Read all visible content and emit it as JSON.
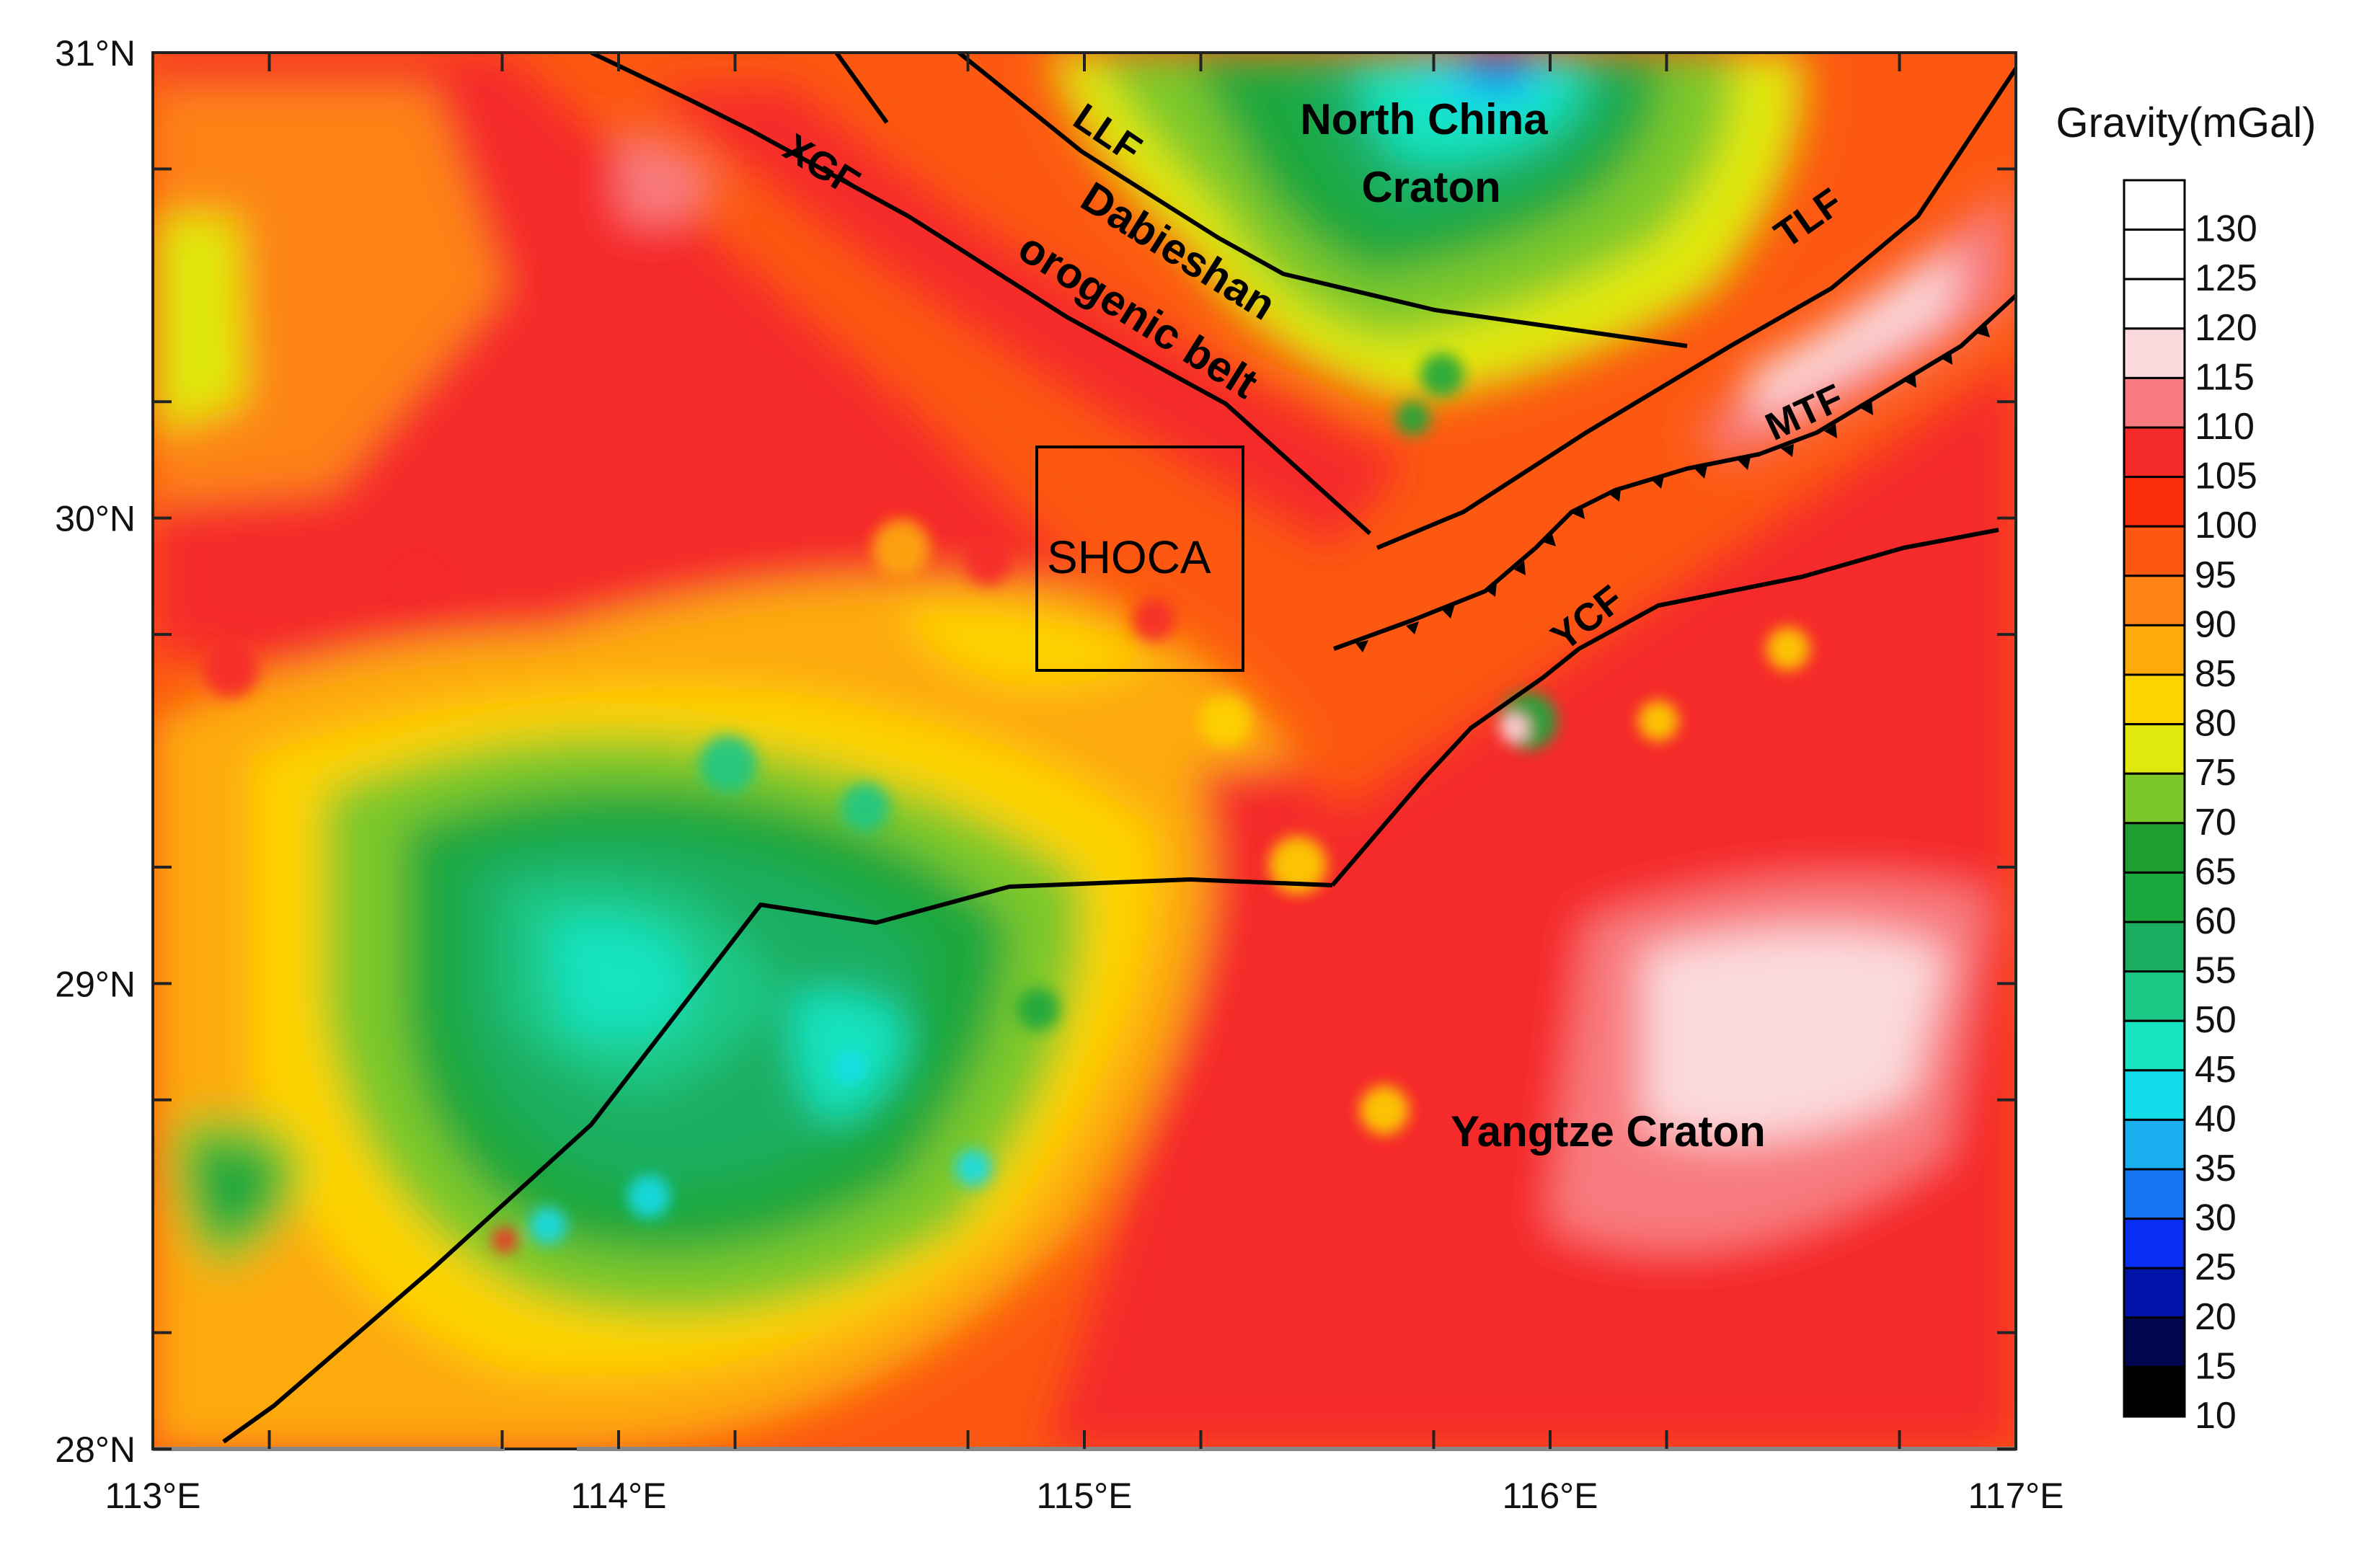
{
  "map": {
    "x_ticks": [
      "113°E",
      "114°E",
      "115°E",
      "116°E",
      "117°E"
    ],
    "y_ticks": [
      "31°N",
      "30°N",
      "29°N",
      "28°N"
    ],
    "extent": {
      "lon": [
        113,
        117
      ],
      "lat": [
        28,
        31
      ]
    },
    "regions": {
      "north_china_line1": "North China",
      "north_china_line2": "Craton",
      "dabieshan_line1": "Dabieshan",
      "dabieshan_line2": "orogenic belt",
      "yangtze": "Yangtze Craton",
      "shoca": "SHOCA"
    },
    "faults": [
      "XGF",
      "LLF",
      "TLF",
      "MTF",
      "YCF"
    ]
  },
  "colorbar": {
    "title": "Gravity(mGal)",
    "levels": [
      130,
      125,
      120,
      115,
      110,
      105,
      100,
      95,
      90,
      85,
      80,
      75,
      70,
      65,
      60,
      55,
      50,
      45,
      40,
      35,
      30,
      25,
      20,
      15,
      10
    ],
    "colors": [
      "#ffffff",
      "#ffffff",
      "#ffffff",
      "#fbd9dc",
      "#f87b7f",
      "#f52a2a",
      "#fb2f0b",
      "#fc5811",
      "#fd8314",
      "#fdaa0b",
      "#fdd300",
      "#e0e80f",
      "#7cc82a",
      "#1e9e30",
      "#1aa73e",
      "#1bae61",
      "#1ac785",
      "#18e3bf",
      "#13dcea",
      "#1ab0f0",
      "#1575f0",
      "#0b2ef3",
      "#0013a8",
      "#00064e",
      "#000000"
    ]
  }
}
